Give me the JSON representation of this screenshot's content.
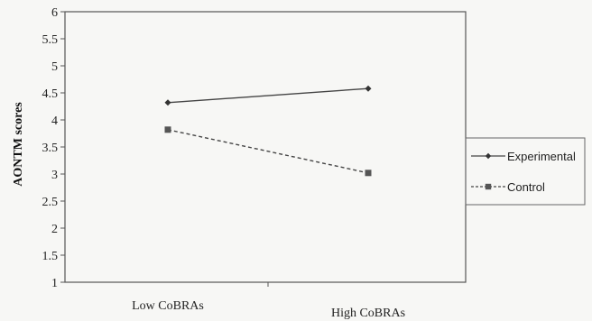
{
  "chart_data": {
    "type": "line",
    "title": "",
    "xlabel": "",
    "ylabel": "AONTM scores",
    "ylim": [
      1,
      6
    ],
    "yticks": [
      "1",
      "1.5",
      "2",
      "2.5",
      "3",
      "3.5",
      "4",
      "4.5",
      "5",
      "5.5",
      "6"
    ],
    "categories": [
      "Low CoBRAs",
      "High CoBRAs"
    ],
    "series": [
      {
        "name": "Experimental",
        "values": [
          4.32,
          4.58
        ],
        "color": "#444444",
        "marker": "diamond",
        "dash": "solid"
      },
      {
        "name": "Control",
        "values": [
          3.82,
          3.02
        ],
        "color": "#444444",
        "marker": "square",
        "dash": "dashed"
      }
    ],
    "grid": false,
    "legend": "right"
  }
}
